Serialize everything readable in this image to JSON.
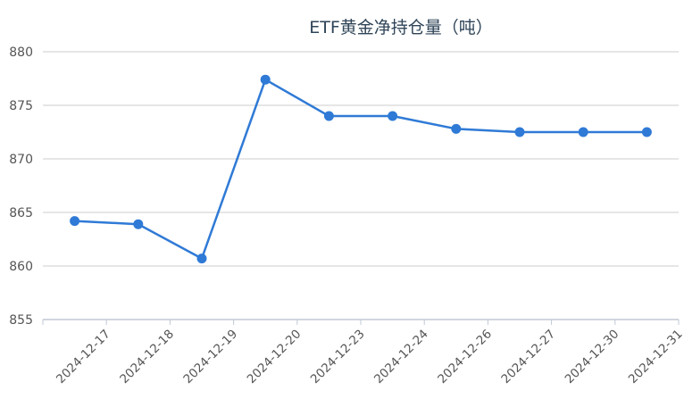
{
  "chart_data": {
    "type": "line",
    "title": "ETF黄金净持仓量（吨）",
    "xlabel": "",
    "ylabel": "",
    "categories": [
      "2024-12-17",
      "2024-12-18",
      "2024-12-19",
      "2024-12-20",
      "2024-12-23",
      "2024-12-24",
      "2024-12-26",
      "2024-12-27",
      "2024-12-30",
      "2024-12-31"
    ],
    "series": [
      {
        "name": "ETF黄金净持仓量",
        "values": [
          864.2,
          863.9,
          860.7,
          877.4,
          874.0,
          874.0,
          872.8,
          872.5,
          872.5,
          872.5
        ],
        "color": "#2f7ad6"
      }
    ],
    "ylim": [
      855,
      880
    ],
    "yticks": [
      855,
      860,
      865,
      870,
      875,
      880
    ],
    "grid": true,
    "legend": "none"
  },
  "colors": {
    "line": "#2f7ad6",
    "grid": "#cccccc",
    "axis": "#c0c8d4",
    "title": "#2f4458",
    "label": "#555555"
  }
}
